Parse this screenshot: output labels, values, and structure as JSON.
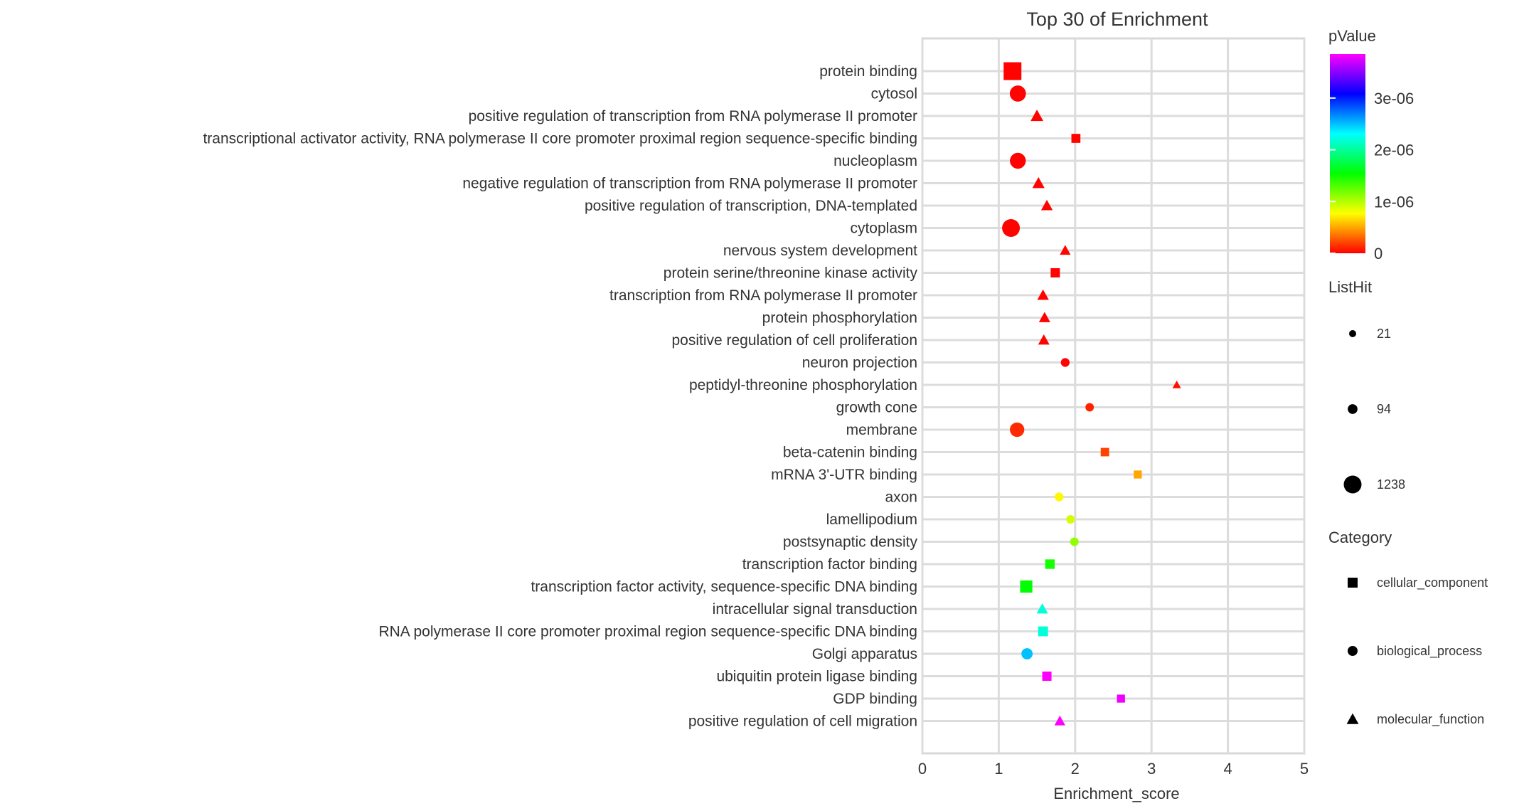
{
  "chart_data": {
    "type": "scatter",
    "title": "Top 30 of  Enrichment",
    "xlabel": "Enrichment_score",
    "ylabel": "",
    "xlim": [
      0,
      5
    ],
    "xticks": [
      "0",
      "1",
      "2",
      "3",
      "4",
      "5"
    ],
    "grid": true,
    "legend_position": "right",
    "color_legend": {
      "title": "pValue",
      "range": [
        0,
        3.85e-06
      ],
      "ticks": [
        {
          "value": 0,
          "label": "0"
        },
        {
          "value": 1e-06,
          "label": "1e-06"
        },
        {
          "value": 2e-06,
          "label": "2e-06"
        },
        {
          "value": 3e-06,
          "label": "3e-06"
        }
      ],
      "colormap": "rainbow (red → yellow → green → cyan → blue → magenta)"
    },
    "size_legend": {
      "title": "ListHit",
      "entries": [
        {
          "value": 21,
          "label": "21"
        },
        {
          "value": 94,
          "label": "94"
        },
        {
          "value": 1238,
          "label": "1238"
        }
      ]
    },
    "shape_legend": {
      "title": "Category",
      "entries": [
        {
          "label": "cellular_component",
          "shape": "square"
        },
        {
          "label": "biological_process",
          "shape": "circle"
        },
        {
          "label": "molecular_function",
          "shape": "triangle"
        }
      ]
    },
    "points": [
      {
        "term": "protein binding",
        "x": 1.18,
        "pValue": 1e-08,
        "listHit": 1238,
        "category": "cellular_component"
      },
      {
        "term": "cytosol",
        "x": 1.25,
        "pValue": 1e-08,
        "listHit": 900,
        "category": "biological_process"
      },
      {
        "term": "positive regulation of transcription from RNA polymerase II promoter",
        "x": 1.5,
        "pValue": 1e-08,
        "listHit": 150,
        "category": "molecular_function"
      },
      {
        "term": "transcriptional activator activity, RNA polymerase II core promoter proximal region sequence-specific binding",
        "x": 2.01,
        "pValue": 1e-08,
        "listHit": 60,
        "category": "cellular_component"
      },
      {
        "term": "nucleoplasm",
        "x": 1.25,
        "pValue": 1e-08,
        "listHit": 850,
        "category": "biological_process"
      },
      {
        "term": "negative regulation of transcription from RNA polymerase II promoter",
        "x": 1.52,
        "pValue": 1e-08,
        "listHit": 120,
        "category": "molecular_function"
      },
      {
        "term": "positive regulation of transcription, DNA-templated",
        "x": 1.63,
        "pValue": 1e-08,
        "listHit": 90,
        "category": "molecular_function"
      },
      {
        "term": "cytoplasm",
        "x": 1.16,
        "pValue": 1e-08,
        "listHit": 1238,
        "category": "biological_process"
      },
      {
        "term": "nervous system development",
        "x": 1.87,
        "pValue": 1e-08,
        "listHit": 60,
        "category": "molecular_function"
      },
      {
        "term": "protein serine/threonine kinase activity",
        "x": 1.74,
        "pValue": 1e-08,
        "listHit": 70,
        "category": "cellular_component"
      },
      {
        "term": "transcription from RNA polymerase II promoter",
        "x": 1.58,
        "pValue": 1e-08,
        "listHit": 90,
        "category": "molecular_function"
      },
      {
        "term": "protein phosphorylation",
        "x": 1.6,
        "pValue": 1e-08,
        "listHit": 80,
        "category": "molecular_function"
      },
      {
        "term": "positive regulation of cell proliferation",
        "x": 1.59,
        "pValue": 1e-08,
        "listHit": 80,
        "category": "molecular_function"
      },
      {
        "term": "neuron projection",
        "x": 1.87,
        "pValue": 1e-08,
        "listHit": 50,
        "category": "biological_process"
      },
      {
        "term": "peptidyl-threonine phosphorylation",
        "x": 3.33,
        "pValue": 5e-08,
        "listHit": 21,
        "category": "molecular_function"
      },
      {
        "term": "growth cone",
        "x": 2.19,
        "pValue": 1e-07,
        "listHit": 40,
        "category": "biological_process"
      },
      {
        "term": "membrane",
        "x": 1.24,
        "pValue": 1.3e-07,
        "listHit": 600,
        "category": "biological_process"
      },
      {
        "term": "beta-catenin binding",
        "x": 2.39,
        "pValue": 2e-07,
        "listHit": 40,
        "category": "cellular_component"
      },
      {
        "term": "mRNA 3'-UTR binding",
        "x": 2.82,
        "pValue": 5e-07,
        "listHit": 30,
        "category": "cellular_component"
      },
      {
        "term": "axon",
        "x": 1.79,
        "pValue": 7.5e-07,
        "listHit": 55,
        "category": "biological_process"
      },
      {
        "term": "lamellipodium",
        "x": 1.94,
        "pValue": 9e-07,
        "listHit": 45,
        "category": "biological_process"
      },
      {
        "term": "postsynaptic density",
        "x": 1.99,
        "pValue": 1.1e-06,
        "listHit": 45,
        "category": "biological_process"
      },
      {
        "term": "transcription factor binding",
        "x": 1.67,
        "pValue": 1.48e-06,
        "listHit": 80,
        "category": "cellular_component"
      },
      {
        "term": "transcription factor activity, sequence-specific DNA binding",
        "x": 1.36,
        "pValue": 1.55e-06,
        "listHit": 300,
        "category": "cellular_component"
      },
      {
        "term": "intracellular signal transduction",
        "x": 1.57,
        "pValue": 2.2e-06,
        "listHit": 80,
        "category": "molecular_function"
      },
      {
        "term": "RNA polymerase II core promoter proximal region sequence-specific DNA binding",
        "x": 1.58,
        "pValue": 2.2e-06,
        "listHit": 100,
        "category": "cellular_component"
      },
      {
        "term": "Golgi apparatus",
        "x": 1.37,
        "pValue": 2.5e-06,
        "listHit": 200,
        "category": "biological_process"
      },
      {
        "term": "ubiquitin protein ligase binding",
        "x": 1.63,
        "pValue": 3.85e-06,
        "listHit": 70,
        "category": "cellular_component"
      },
      {
        "term": "GDP binding",
        "x": 2.6,
        "pValue": 3.8e-06,
        "listHit": 30,
        "category": "cellular_component"
      },
      {
        "term": "positive regulation of cell migration",
        "x": 1.8,
        "pValue": 3.85e-06,
        "listHit": 60,
        "category": "molecular_function"
      }
    ]
  }
}
